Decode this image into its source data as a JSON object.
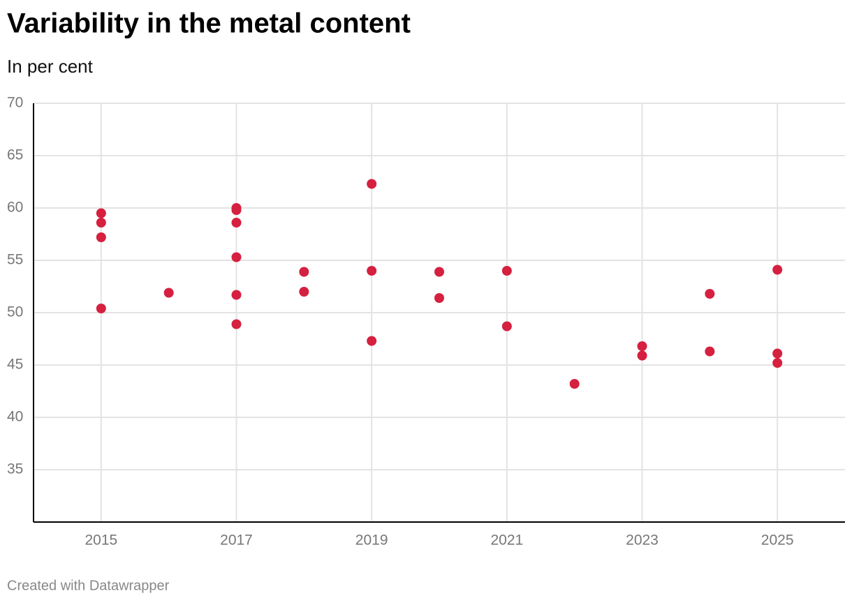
{
  "chart_data": {
    "type": "scatter",
    "title": "Variability in the metal content",
    "subtitle": "In per cent",
    "footer": "Created with Datawrapper",
    "x": [
      2015,
      2015,
      2015,
      2015,
      2016,
      2017,
      2017,
      2017,
      2017,
      2017,
      2017,
      2018,
      2018,
      2019,
      2019,
      2019,
      2020,
      2020,
      2021,
      2021,
      2022,
      2023,
      2023,
      2024,
      2024,
      2025,
      2025,
      2025
    ],
    "values": [
      59.5,
      58.6,
      57.2,
      50.4,
      51.9,
      60.0,
      59.8,
      58.6,
      55.3,
      51.7,
      48.9,
      53.9,
      52.0,
      62.3,
      54.0,
      47.3,
      53.9,
      51.4,
      54.0,
      48.7,
      43.2,
      46.8,
      45.9,
      51.8,
      46.3,
      54.1,
      46.1,
      45.2
    ],
    "color": "#d6203f",
    "xlim": [
      2014,
      2026
    ],
    "xticks": [
      2015,
      2017,
      2019,
      2021,
      2023,
      2025
    ],
    "ylim": [
      30,
      70
    ],
    "yticks": [
      35,
      40,
      45,
      50,
      55,
      60,
      65,
      70
    ],
    "grid": true
  }
}
